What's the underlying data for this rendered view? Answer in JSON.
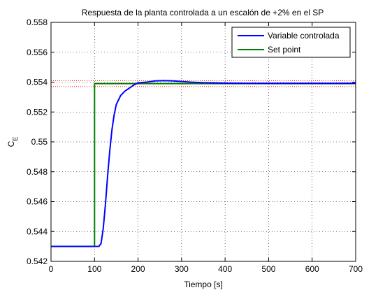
{
  "chart_data": {
    "type": "line",
    "title": "Respuesta de la planta controlada a un escalón de +2% en el SP",
    "xlabel": "Tiempo [s]",
    "ylabel_main": "C",
    "ylabel_sub": "E",
    "xlim": [
      0,
      700
    ],
    "ylim": [
      0.542,
      0.558
    ],
    "xticks": [
      0,
      100,
      200,
      300,
      400,
      500,
      600,
      700
    ],
    "yticks": [
      0.542,
      0.544,
      0.546,
      0.548,
      0.55,
      0.552,
      0.554,
      0.556,
      0.558
    ],
    "xtick_labels": [
      "0",
      "100",
      "200",
      "300",
      "400",
      "500",
      "600",
      "700"
    ],
    "ytick_labels": [
      "0.542",
      "0.544",
      "0.546",
      "0.548",
      "0.55",
      "0.552",
      "0.554",
      "0.556",
      "0.558"
    ],
    "grid": true,
    "legend_position": "top-right",
    "reference_lines": [
      {
        "y": 0.5541,
        "color": "#ff0000",
        "style": "dotted"
      },
      {
        "y": 0.5537,
        "color": "#ff0000",
        "style": "dotted"
      }
    ],
    "series": [
      {
        "name": "Variable controlada",
        "color": "#0000ff",
        "x": [
          0,
          100,
          110,
          115,
          120,
          125,
          130,
          135,
          140,
          145,
          150,
          160,
          170,
          180,
          190,
          200,
          220,
          240,
          260,
          280,
          300,
          320,
          350,
          400,
          450,
          500,
          600,
          700
        ],
        "y": [
          0.543,
          0.543,
          0.543,
          0.5432,
          0.5442,
          0.5458,
          0.5477,
          0.5494,
          0.5508,
          0.5518,
          0.5525,
          0.5531,
          0.5534,
          0.5536,
          0.5538,
          0.55395,
          0.554,
          0.55408,
          0.5541,
          0.55408,
          0.55404,
          0.554,
          0.55396,
          0.55393,
          0.55392,
          0.55392,
          0.55392,
          0.55392
        ]
      },
      {
        "name": "Set point",
        "color": "#008000",
        "x": [
          0,
          100,
          100,
          700
        ],
        "y": [
          0.543,
          0.543,
          0.5539,
          0.5539
        ]
      }
    ]
  }
}
